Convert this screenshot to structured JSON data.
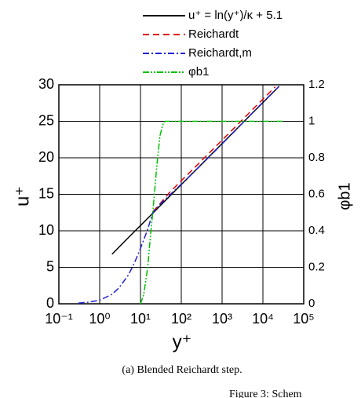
{
  "chart_data": {
    "type": "line",
    "xlabel": "y⁺",
    "ylabel": "u⁺",
    "y2label": "φb1",
    "caption": "(a) Blended Reichardt step.",
    "footer": "Figure 3: Schem",
    "xscale": "log",
    "grid": true,
    "xlim": [
      0.1,
      100000
    ],
    "xticks": [
      {
        "value": 0.1,
        "label": "10⁻¹"
      },
      {
        "value": 1,
        "label": "10⁰"
      },
      {
        "value": 10,
        "label": "10¹"
      },
      {
        "value": 100,
        "label": "10²"
      },
      {
        "value": 1000,
        "label": "10³"
      },
      {
        "value": 10000,
        "label": "10⁴"
      },
      {
        "value": 100000,
        "label": "10⁵"
      }
    ],
    "ylim": [
      0,
      30
    ],
    "yticks": [
      0,
      5,
      10,
      15,
      20,
      25,
      30
    ],
    "y2lim": [
      0,
      1.2
    ],
    "y2ticks": [
      0,
      0.2,
      0.4,
      0.6,
      0.8,
      1,
      1.2
    ],
    "series": [
      {
        "name": "u⁺ = ln(y⁺)/κ + 5.1",
        "color": "#000000",
        "style": "solid",
        "x": [
          2,
          3,
          5,
          7,
          10,
          15,
          20,
          30,
          50,
          100,
          200,
          500,
          1000,
          2000,
          5000,
          10000,
          25000
        ],
        "values": [
          6.79,
          7.78,
          9.03,
          9.85,
          10.72,
          11.71,
          12.41,
          13.4,
          14.64,
          16.33,
          18.02,
          20.26,
          21.95,
          23.64,
          25.87,
          27.56,
          29.8
        ]
      },
      {
        "name": "Reichardt",
        "color": "#e00000",
        "style": "dashed",
        "x": [
          20,
          30,
          50,
          100,
          200,
          500,
          1000,
          2000,
          5000,
          10000,
          20000
        ],
        "values": [
          12.6,
          13.7,
          15.15,
          16.86,
          18.52,
          20.73,
          22.42,
          24.11,
          26.34,
          28.03,
          29.72
        ]
      },
      {
        "name": "Reichardt,m",
        "color": "#2020d0",
        "style": "dashdot",
        "x": [
          0.3,
          0.5,
          1,
          2,
          3,
          5,
          7,
          10,
          15,
          20,
          30,
          50,
          100,
          200,
          500,
          1000,
          2000,
          5000,
          10000,
          25000
        ],
        "values": [
          0.1,
          0.2,
          0.5,
          1.3,
          2.2,
          3.9,
          5.5,
          7.6,
          10.2,
          12.5,
          13.6,
          14.8,
          16.4,
          18.0,
          20.2,
          21.9,
          23.6,
          25.9,
          27.6,
          29.8
        ]
      },
      {
        "name": "φb1",
        "color": "#00c000",
        "style": "dashdotdot",
        "axis": "y2",
        "x": [
          10,
          12,
          15,
          18,
          20,
          25,
          30,
          35,
          40,
          100,
          1000,
          10000,
          30000
        ],
        "values": [
          0,
          0.05,
          0.2,
          0.4,
          0.5,
          0.75,
          0.92,
          0.98,
          1,
          1,
          1,
          1,
          1
        ]
      }
    ]
  }
}
